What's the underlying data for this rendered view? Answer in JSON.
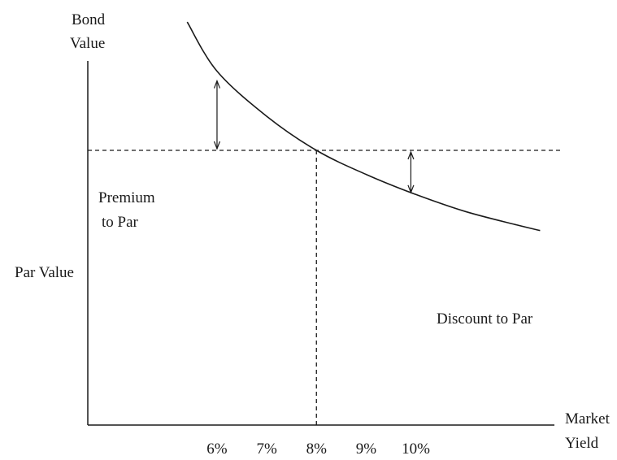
{
  "chart_data": {
    "type": "line",
    "ylabel_lines": [
      "Bond",
      "Value"
    ],
    "xlabel_lines": [
      "Market",
      "Yield"
    ],
    "x_ticks": [
      6,
      7,
      8,
      9,
      10
    ],
    "x_tick_labels": [
      "6%",
      "7%",
      "8%",
      "9%",
      "10%"
    ],
    "par_label": "Par Value",
    "par_yield": 8,
    "premium_label_lines": [
      "Premium",
      "to Par"
    ],
    "discount_label": "Discount to Par",
    "series": [
      {
        "x": [
          5.4,
          6.0,
          7.0,
          8.0,
          9.0,
          10.0,
          11.0,
          12.0,
          12.5
        ],
        "y": [
          2.28,
          1.79,
          1.34,
          1.0,
          0.76,
          0.56,
          0.39,
          0.26,
          0.2
        ]
      }
    ],
    "xlim": [
      3.4,
      13.9
    ],
    "ylim": [
      -1.74,
      2.5
    ],
    "premium_arrow_yield": 6.0,
    "discount_arrow_yield": 9.9,
    "discount_arrow_value": 0.58
  }
}
